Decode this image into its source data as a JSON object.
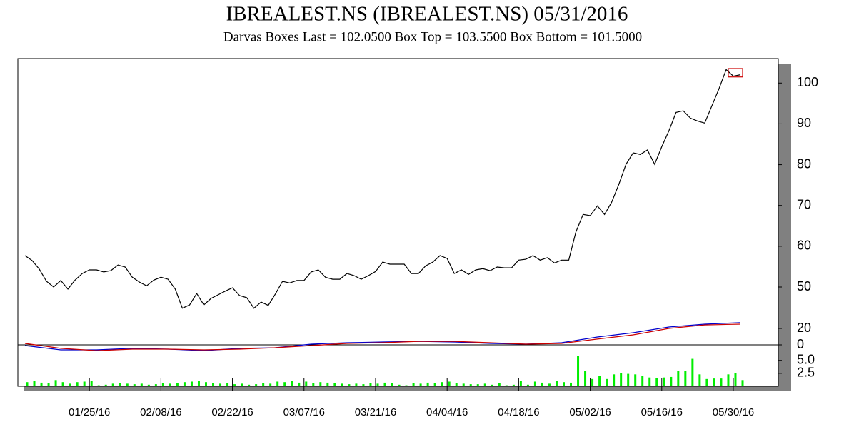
{
  "title": "IBREALEST.NS (IBREALEST.NS)  05/31/2016",
  "subtitle": "Darvas Boxes  Last = 102.0500  Box Top = 103.5500  Box Bottom = 101.5000",
  "chart_data": [
    {
      "type": "line",
      "categories": [
        null,
        null,
        null,
        null,
        null,
        null,
        null,
        null,
        null,
        "01/25/16",
        null,
        null,
        null,
        null,
        null,
        null,
        null,
        null,
        null,
        "02/08/16",
        null,
        null,
        null,
        null,
        null,
        null,
        null,
        null,
        null,
        "02/22/16",
        null,
        null,
        null,
        null,
        null,
        null,
        null,
        null,
        null,
        "03/07/16",
        null,
        null,
        null,
        null,
        null,
        null,
        null,
        null,
        null,
        "03/21/16",
        null,
        null,
        null,
        null,
        null,
        null,
        null,
        null,
        null,
        "04/04/16",
        null,
        null,
        null,
        null,
        null,
        null,
        null,
        null,
        null,
        "04/18/16",
        null,
        null,
        null,
        null,
        null,
        null,
        null,
        null,
        null,
        "05/02/16",
        null,
        null,
        null,
        null,
        null,
        null,
        null,
        null,
        null,
        "05/16/16",
        null,
        null,
        null,
        null,
        null,
        null,
        null,
        null,
        null,
        "05/30/16",
        null
      ],
      "values": [
        57.7,
        56.5,
        54.4,
        51.4,
        50.0,
        51.6,
        49.5,
        51.7,
        53.3,
        54.2,
        54.2,
        53.7,
        54.0,
        55.4,
        54.9,
        52.4,
        51.2,
        50.3,
        51.7,
        52.4,
        51.9,
        49.5,
        44.8,
        45.6,
        48.4,
        45.6,
        47.2,
        48.1,
        49.0,
        49.8,
        47.9,
        47.4,
        44.8,
        46.3,
        45.5,
        48.3,
        51.4,
        51.0,
        51.6,
        51.6,
        53.7,
        54.2,
        52.4,
        51.9,
        51.9,
        53.3,
        52.8,
        51.9,
        52.8,
        53.8,
        56.1,
        55.6,
        55.6,
        55.6,
        53.3,
        53.3,
        55.2,
        56.1,
        57.7,
        57.0,
        53.3,
        54.2,
        53.1,
        54.2,
        54.5,
        54.0,
        54.9,
        54.7,
        54.7,
        56.6,
        56.8,
        57.7,
        56.6,
        57.2,
        55.9,
        56.6,
        56.6,
        63.5,
        67.8,
        67.5,
        69.9,
        67.8,
        70.8,
        75.2,
        80.1,
        82.9,
        82.5,
        83.6,
        80.1,
        84.4,
        88.3,
        92.8,
        93.2,
        91.4,
        90.7,
        90.2,
        94.4,
        98.6,
        103.3,
        101.7,
        102.05
      ],
      "color": "#000000",
      "box": {
        "top": 103.55,
        "bottom": 101.5,
        "x": [
          98.3,
          100.3
        ],
        "color": "#cc0000"
      },
      "ylim": [
        43,
        106
      ],
      "yticks": [
        50,
        60,
        70,
        80,
        90,
        100
      ]
    },
    {
      "type": "line",
      "x": [
        0,
        5,
        10,
        15,
        20,
        25,
        30,
        35,
        40,
        45,
        50,
        55,
        60,
        65,
        70,
        75,
        80,
        85,
        90,
        95,
        100
      ],
      "series": [
        {
          "color": "#0000cc",
          "values": [
            -0.9,
            -6.1,
            -6.1,
            -4.3,
            -5.2,
            -7.0,
            -4.3,
            -3.5,
            0.9,
            2.6,
            3.5,
            4.3,
            3.5,
            1.7,
            0.9,
            2.6,
            9.6,
            14.8,
            21.7,
            25.2,
            27.0
          ]
        },
        {
          "color": "#cc0000",
          "values": [
            1.7,
            -4.3,
            -7.0,
            -5.2,
            -5.2,
            -6.1,
            -5.2,
            -3.5,
            -0.9,
            1.7,
            2.6,
            4.3,
            4.3,
            2.6,
            0.9,
            1.7,
            7.0,
            12.2,
            20.0,
            24.3,
            25.2
          ]
        }
      ],
      "ylim": [
        -10,
        40
      ],
      "yticks": [
        0,
        20
      ]
    },
    {
      "type": "bar",
      "values": [
        0.8,
        1.0,
        0.7,
        0.6,
        1.2,
        0.8,
        0.5,
        0.8,
        0.9,
        1.1,
        0.2,
        0.3,
        0.5,
        0.6,
        0.5,
        0.4,
        0.5,
        0.3,
        0.4,
        0.6,
        0.5,
        0.6,
        0.8,
        0.9,
        1.0,
        0.8,
        0.6,
        0.5,
        0.6,
        0.4,
        0.5,
        0.3,
        0.4,
        0.6,
        0.5,
        0.9,
        0.8,
        1.1,
        0.7,
        0.9,
        0.6,
        0.8,
        0.7,
        0.6,
        0.5,
        0.4,
        0.5,
        0.4,
        0.6,
        0.5,
        0.7,
        0.6,
        0.3,
        0.2,
        0.6,
        0.5,
        0.7,
        0.6,
        0.8,
        0.9,
        0.6,
        0.5,
        0.4,
        0.4,
        0.5,
        0.3,
        0.6,
        0.2,
        0.3,
        1.0,
        0.3,
        0.9,
        0.7,
        0.5,
        1.0,
        0.8,
        0.7,
        5.8,
        3.0,
        1.4,
        2.0,
        1.4,
        2.3,
        2.6,
        2.4,
        2.3,
        2.0,
        1.7,
        1.6,
        1.7,
        1.8,
        3.0,
        3.0,
        5.3,
        2.3,
        1.4,
        1.5,
        1.5,
        2.3,
        2.6,
        1.2
      ],
      "color": "#00ee00",
      "ylim": [
        0,
        8
      ],
      "yticks": [
        {
          "value": 5,
          "label": "5.0"
        },
        {
          "value": 2.5,
          "label": "2.5"
        }
      ]
    }
  ]
}
